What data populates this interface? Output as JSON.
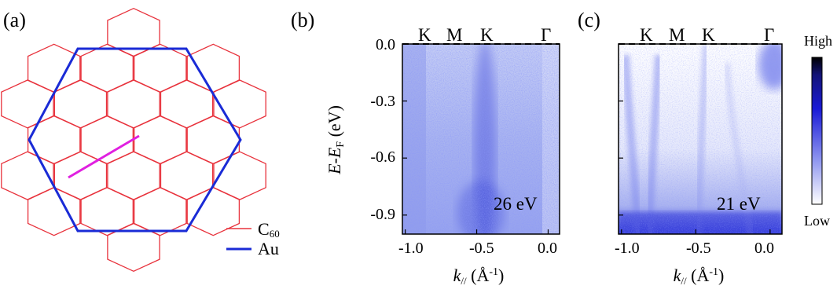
{
  "figure": {
    "panel_a": {
      "label": "(a)",
      "legend": [
        {
          "name": "C",
          "sub": "60",
          "color": "#e8323c"
        },
        {
          "name": "Au",
          "sub": "",
          "color": "#1a2bd6"
        }
      ],
      "path_color": "#e020e0"
    },
    "panel_b": {
      "label": "(b)",
      "photon_energy": "26 eV",
      "symmetry_points": [
        "K",
        "M",
        "K",
        "Γ"
      ]
    },
    "panel_c": {
      "label": "(c)",
      "photon_energy": "21 eV",
      "symmetry_points": [
        "K",
        "M",
        "K",
        "Γ"
      ]
    },
    "ylabel": {
      "main": "E-E",
      "sub": "F",
      "unit": " (eV)"
    },
    "xlabel": {
      "main": "k",
      "sub": "//",
      "unit": " (Å",
      "exp": "-1",
      "close": ")"
    },
    "y_ticks": [
      "0.0",
      "-0.3",
      "-0.6",
      "-0.9"
    ],
    "x_ticks": [
      "-1.0",
      "-0.5",
      "0.0"
    ],
    "colorbar": {
      "high": "High",
      "low": "Low",
      "colors": [
        "#000000",
        "#1a1ad6",
        "#ffffff"
      ]
    }
  },
  "chart_data": [
    {
      "type": "heatmap",
      "title": "(b)",
      "annotation": "26 eV",
      "xlabel": "k// (Å-1)",
      "ylabel": "E-EF (eV)",
      "xlim": [
        -1.02,
        0.08
      ],
      "ylim": [
        -1.0,
        0.0
      ],
      "x_ticks": [
        -1.0,
        -0.5,
        0.0
      ],
      "y_ticks": [
        0.0,
        -0.3,
        -0.6,
        -0.9
      ],
      "fermi_level": 0.0,
      "symmetry_points": [
        {
          "label": "K",
          "k": -0.82
        },
        {
          "label": "M",
          "k": -0.62
        },
        {
          "label": "K",
          "k": -0.42
        },
        {
          "label": "Γ",
          "k": 0.0
        }
      ]
    },
    {
      "type": "heatmap",
      "title": "(c)",
      "annotation": "21 eV",
      "xlabel": "k// (Å-1)",
      "ylabel": "E-EF (eV)",
      "xlim": [
        -1.02,
        0.08
      ],
      "ylim": [
        -1.0,
        0.0
      ],
      "x_ticks": [
        -1.0,
        -0.5,
        0.0
      ],
      "y_ticks": [
        0.0,
        -0.3,
        -0.6,
        -0.9
      ],
      "fermi_level": 0.0,
      "symmetry_points": [
        {
          "label": "K",
          "k": -0.82
        },
        {
          "label": "M",
          "k": -0.62
        },
        {
          "label": "K",
          "k": -0.42
        },
        {
          "label": "Γ",
          "k": 0.0
        }
      ]
    }
  ]
}
